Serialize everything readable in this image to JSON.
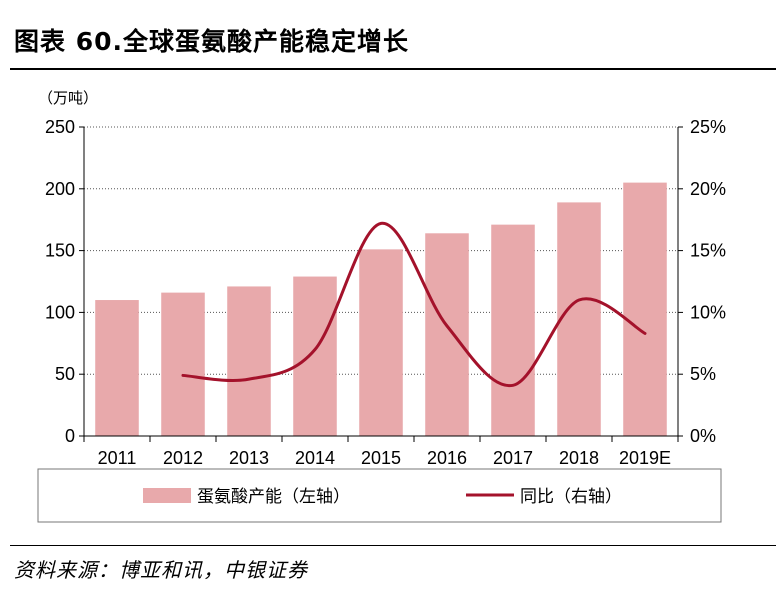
{
  "header": {
    "title": "图表 60.全球蛋氨酸产能稳定增长"
  },
  "footer": {
    "source": "资料来源：博亚和讯，中银证券"
  },
  "colors": {
    "bar": "#E8A9AB",
    "line": "#A4122B",
    "grid": "#555555"
  },
  "chart_data": {
    "type": "bar",
    "title": "全球蛋氨酸产能稳定增长",
    "unit_label": "（万吨）",
    "categories": [
      "2011",
      "2012",
      "2013",
      "2014",
      "2015",
      "2016",
      "2017",
      "2018",
      "2019E"
    ],
    "series": [
      {
        "name": "蛋氨酸产能（左轴）",
        "type": "bar",
        "axis": "left",
        "values": [
          110,
          116,
          121,
          129,
          151,
          164,
          171,
          189,
          205
        ]
      },
      {
        "name": "同比（右轴）",
        "type": "line",
        "axis": "right",
        "values": [
          null,
          4.9,
          4.6,
          7.0,
          17.2,
          8.9,
          4.1,
          11.0,
          8.3
        ]
      }
    ],
    "y_left": {
      "ticks": [
        "0",
        "50",
        "100",
        "150",
        "200",
        "250"
      ],
      "range": [
        0,
        250
      ]
    },
    "y_right": {
      "ticks": [
        "0%",
        "5%",
        "10%",
        "15%",
        "20%",
        "25%"
      ],
      "range": [
        0,
        25
      ]
    },
    "grid": "horizontal dotted",
    "legend_position": "bottom"
  }
}
